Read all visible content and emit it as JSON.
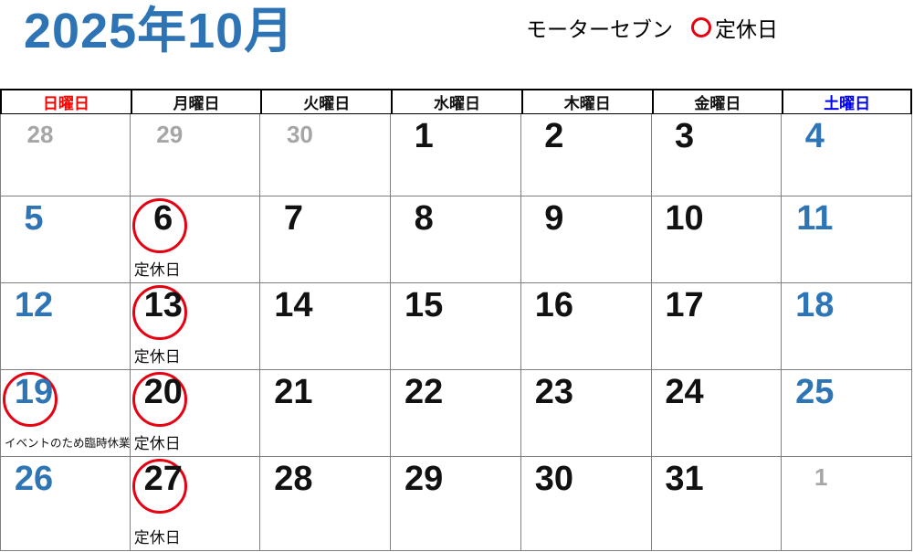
{
  "page": {
    "title": "2025年10月"
  },
  "legend": {
    "shop_name": "モーターセブン",
    "marker": "red-circle",
    "marker_label": "定休日"
  },
  "colors": {
    "title_blue": "#2E74B5",
    "date_blue": "#2E75B6",
    "date_black": "#111111",
    "date_gray": "#A6A6A6",
    "sunday_red": "#FF0000",
    "weekday_black": "#111111",
    "saturday_blue": "#0000EE",
    "circle_red": "#E60012",
    "grid_line": "#808080",
    "header_border": "#000000"
  },
  "weekdays": [
    {
      "label": "日曜日",
      "color": "#FF0000"
    },
    {
      "label": "月曜日",
      "color": "#111111"
    },
    {
      "label": "火曜日",
      "color": "#111111"
    },
    {
      "label": "水曜日",
      "color": "#111111"
    },
    {
      "label": "木曜日",
      "color": "#111111"
    },
    {
      "label": "金曜日",
      "color": "#111111"
    },
    {
      "label": "土曜日",
      "color": "#0000EE"
    }
  ],
  "calendar": {
    "weeks": [
      [
        {
          "day": "28",
          "tone": "gray"
        },
        {
          "day": "29",
          "tone": "gray"
        },
        {
          "day": "30",
          "tone": "gray"
        },
        {
          "day": "1",
          "tone": "black"
        },
        {
          "day": "2",
          "tone": "black"
        },
        {
          "day": "3",
          "tone": "black"
        },
        {
          "day": "4",
          "tone": "blue"
        }
      ],
      [
        {
          "day": "5",
          "tone": "blue"
        },
        {
          "day": "6",
          "tone": "black",
          "circled": true,
          "note": "定休日"
        },
        {
          "day": "7",
          "tone": "black"
        },
        {
          "day": "8",
          "tone": "black"
        },
        {
          "day": "9",
          "tone": "black"
        },
        {
          "day": "10",
          "tone": "black"
        },
        {
          "day": "11",
          "tone": "blue"
        }
      ],
      [
        {
          "day": "12",
          "tone": "blue"
        },
        {
          "day": "13",
          "tone": "black",
          "circled": true,
          "note": "定休日"
        },
        {
          "day": "14",
          "tone": "black"
        },
        {
          "day": "15",
          "tone": "black"
        },
        {
          "day": "16",
          "tone": "black"
        },
        {
          "day": "17",
          "tone": "black"
        },
        {
          "day": "18",
          "tone": "blue"
        }
      ],
      [
        {
          "day": "19",
          "tone": "blue",
          "circled": true,
          "note": "イベントのため臨時休業"
        },
        {
          "day": "20",
          "tone": "black",
          "circled": true,
          "note": "定休日"
        },
        {
          "day": "21",
          "tone": "black"
        },
        {
          "day": "22",
          "tone": "black"
        },
        {
          "day": "23",
          "tone": "black"
        },
        {
          "day": "24",
          "tone": "black"
        },
        {
          "day": "25",
          "tone": "blue"
        }
      ],
      [
        {
          "day": "26",
          "tone": "blue"
        },
        {
          "day": "27",
          "tone": "black",
          "circled": true,
          "note": "定休日"
        },
        {
          "day": "28",
          "tone": "black"
        },
        {
          "day": "29",
          "tone": "black"
        },
        {
          "day": "30",
          "tone": "black"
        },
        {
          "day": "31",
          "tone": "black"
        },
        {
          "day": "1",
          "tone": "gray"
        }
      ]
    ]
  }
}
